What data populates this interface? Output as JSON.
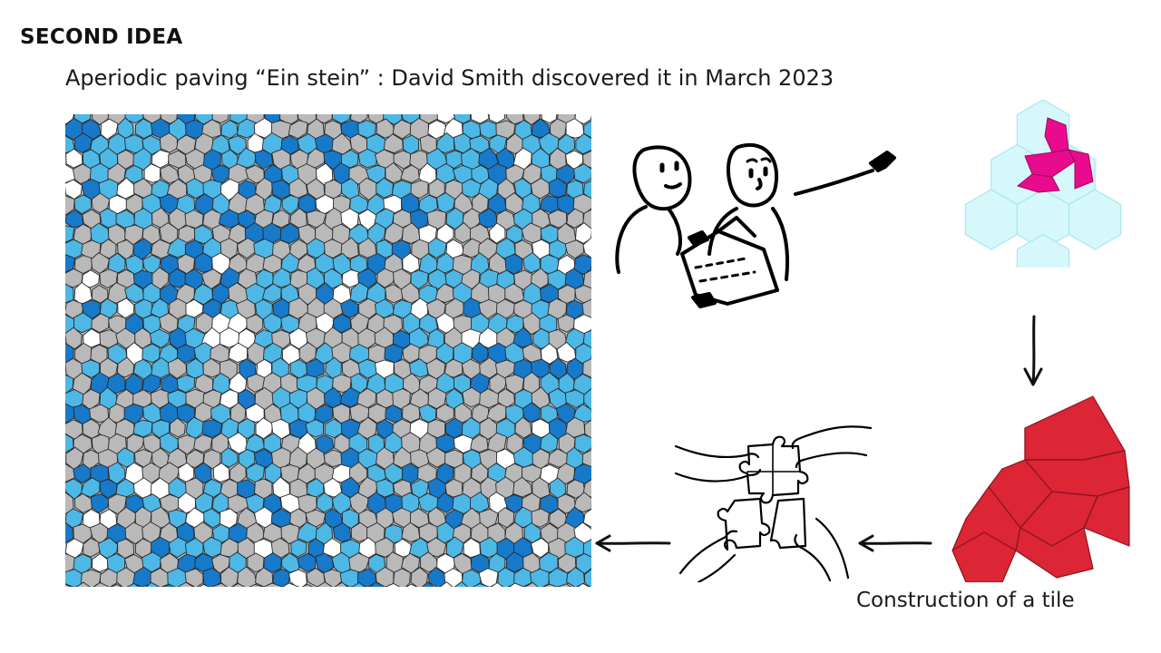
{
  "slide": {
    "heading": "SECOND IDEA",
    "subtitle": "Aperiodic paving “Ein stein” : David Smith discovered it in March 2023",
    "caption": "Construction of a tile"
  },
  "colors": {
    "tile_gray": "#b9b9b9",
    "tile_light_blue": "#4db8e6",
    "tile_dark_blue": "#1779c9",
    "tile_white": "#ffffff",
    "hex_fill": "#d6f8fb",
    "hex_stroke": "#a8e6ef",
    "magenta": "#e90b8d",
    "red": "#dc2535"
  },
  "icons": {
    "people": "two-people-pointing-icon",
    "hex_grid": "hexagon-grid-icon",
    "puzzle": "puzzle-hands-icon",
    "arrows": [
      "arrow-down-icon",
      "arrow-left-icon",
      "arrow-left-icon"
    ]
  }
}
